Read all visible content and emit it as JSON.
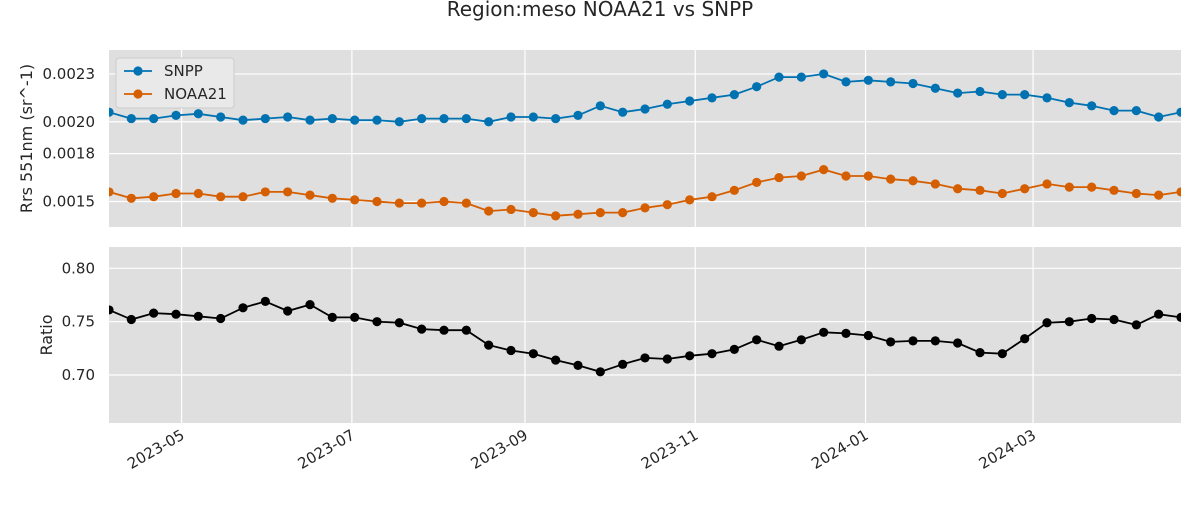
{
  "chart_data": {
    "type": "line",
    "title": "Region:meso NOAA21 vs SNPP",
    "x": [
      "2023-04-05",
      "2023-04-13",
      "2023-04-21",
      "2023-04-29",
      "2023-05-07",
      "2023-05-15",
      "2023-05-23",
      "2023-05-31",
      "2023-06-08",
      "2023-06-16",
      "2023-06-24",
      "2023-07-02",
      "2023-07-10",
      "2023-07-18",
      "2023-07-26",
      "2023-08-03",
      "2023-08-11",
      "2023-08-19",
      "2023-08-27",
      "2023-09-04",
      "2023-09-12",
      "2023-09-20",
      "2023-09-28",
      "2023-10-06",
      "2023-10-14",
      "2023-10-22",
      "2023-10-30",
      "2023-11-07",
      "2023-11-15",
      "2023-11-23",
      "2023-12-01",
      "2023-12-09",
      "2023-12-17",
      "2023-12-25",
      "2024-01-02",
      "2024-01-10",
      "2024-01-18",
      "2024-01-26",
      "2024-02-03",
      "2024-02-11",
      "2024-02-19",
      "2024-02-27",
      "2024-03-06",
      "2024-03-14",
      "2024-03-22",
      "2024-03-30",
      "2024-04-07",
      "2024-04-15",
      "2024-04-23"
    ],
    "xticks": [
      "2023-05",
      "2023-07",
      "2023-09",
      "2023-11",
      "2024-01",
      "2024-03"
    ],
    "xlim": [
      "2023-04-05",
      "2024-04-23"
    ],
    "panels": [
      {
        "ylabel": "Rrs 551nm (sr^-1)",
        "ylim": [
          0.00134,
          0.00245
        ],
        "yticks": [
          0.0015,
          0.0018,
          0.002,
          0.0023
        ],
        "ytick_labels": [
          "0.0015",
          "0.0018",
          "0.0020",
          "0.0023"
        ],
        "legend": "top-left",
        "series": [
          {
            "name": "SNPP",
            "color": "#0072b2",
            "values": [
              0.00206,
              0.00202,
              0.00202,
              0.00204,
              0.00205,
              0.00203,
              0.00201,
              0.00202,
              0.00203,
              0.00201,
              0.00202,
              0.00201,
              0.00201,
              0.002,
              0.00202,
              0.00202,
              0.00202,
              0.002,
              0.00203,
              0.00203,
              0.00202,
              0.00204,
              0.0021,
              0.00206,
              0.00208,
              0.00211,
              0.00213,
              0.00215,
              0.00217,
              0.00222,
              0.00228,
              0.00228,
              0.0023,
              0.00225,
              0.00226,
              0.00225,
              0.00224,
              0.00221,
              0.00218,
              0.00219,
              0.00217,
              0.00217,
              0.00215,
              0.00212,
              0.0021,
              0.00207,
              0.00207,
              0.00203,
              0.00206
            ]
          },
          {
            "name": "NOAA21",
            "color": "#d55e00",
            "values": [
              0.00156,
              0.00152,
              0.00153,
              0.00155,
              0.00155,
              0.00153,
              0.00153,
              0.00156,
              0.00156,
              0.00154,
              0.00152,
              0.00151,
              0.0015,
              0.00149,
              0.00149,
              0.0015,
              0.00149,
              0.00144,
              0.00145,
              0.00143,
              0.00141,
              0.00142,
              0.00143,
              0.00143,
              0.00146,
              0.00148,
              0.00151,
              0.00153,
              0.00157,
              0.00162,
              0.00165,
              0.00166,
              0.0017,
              0.00166,
              0.00166,
              0.00164,
              0.00163,
              0.00161,
              0.00158,
              0.00157,
              0.00155,
              0.00158,
              0.00161,
              0.00159,
              0.00159,
              0.00157,
              0.00155,
              0.00154,
              0.00156
            ]
          }
        ]
      },
      {
        "ylabel": "Ratio",
        "ylim": [
          0.655,
          0.82
        ],
        "yticks": [
          0.7,
          0.75,
          0.8
        ],
        "ytick_labels": [
          "0.70",
          "0.75",
          "0.80"
        ],
        "series": [
          {
            "color": "#000000",
            "values": [
              0.761,
              0.752,
              0.758,
              0.757,
              0.755,
              0.753,
              0.763,
              0.769,
              0.76,
              0.766,
              0.754,
              0.754,
              0.75,
              0.749,
              0.743,
              0.742,
              0.742,
              0.728,
              0.723,
              0.72,
              0.714,
              0.709,
              0.703,
              0.71,
              0.716,
              0.715,
              0.718,
              0.72,
              0.724,
              0.733,
              0.727,
              0.733,
              0.74,
              0.739,
              0.737,
              0.731,
              0.732,
              0.732,
              0.73,
              0.721,
              0.72,
              0.734,
              0.749,
              0.75,
              0.753,
              0.752,
              0.747,
              0.757,
              0.754
            ]
          }
        ]
      }
    ]
  }
}
